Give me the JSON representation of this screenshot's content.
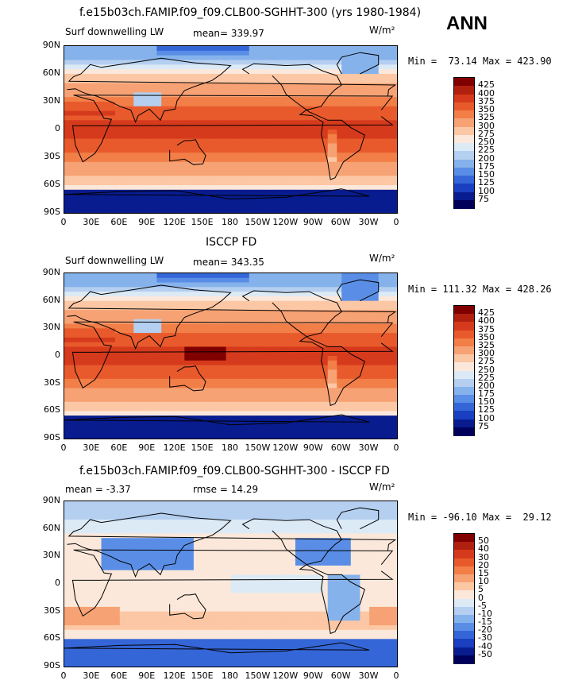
{
  "header": {
    "season": "ANN"
  },
  "panels": [
    {
      "title": "f.e15b03ch.FAMIP.f09_f09.CLB00-SGHHT-300 (yrs 1980-1984)",
      "left_label": "Surf downwelling LW",
      "stat_label": "mean=",
      "stat_value": "339.97",
      "units": "W/m²",
      "min_label": "Min =",
      "min_value": "73.14",
      "max_label": "Max =",
      "max_value": "423.90",
      "colorbar_labels": [
        "425",
        "400",
        "375",
        "350",
        "325",
        "300",
        "275",
        "250",
        "225",
        "200",
        "175",
        "150",
        "125",
        "100",
        "75"
      ],
      "lat_labels": [
        "90N",
        "60N",
        "30N",
        "0",
        "30S",
        "60S",
        "90S"
      ],
      "lon_labels": [
        "0",
        "30E",
        "60E",
        "90E",
        "120E",
        "150E",
        "180",
        "150W",
        "120W",
        "90W",
        "60W",
        "30W",
        "0"
      ],
      "field": "model"
    },
    {
      "title": "ISCCP FD",
      "left_label": "Surf downwelling LW",
      "stat_label": "mean=",
      "stat_value": "343.35",
      "units": "W/m²",
      "min_label": "Min =",
      "min_value": "111.32",
      "max_label": "Max =",
      "max_value": "428.26",
      "colorbar_labels": [
        "425",
        "400",
        "375",
        "350",
        "325",
        "300",
        "275",
        "250",
        "225",
        "200",
        "175",
        "150",
        "125",
        "100",
        "75"
      ],
      "lat_labels": [
        "90N",
        "60N",
        "30N",
        "0",
        "30S",
        "60S",
        "90S"
      ],
      "lon_labels": [
        "0",
        "30E",
        "60E",
        "90E",
        "120E",
        "150E",
        "180",
        "150W",
        "120W",
        "90W",
        "60W",
        "30W",
        "0"
      ],
      "field": "obs"
    },
    {
      "title": "f.e15b03ch.FAMIP.f09_f09.CLB00-SGHHT-300 - ISCCP FD",
      "left_label": "mean =",
      "left_value": "-3.37",
      "stat_label": "rmse =",
      "stat_value": "14.29",
      "units": "W/m²",
      "min_label": "Min =",
      "min_value": "-96.10",
      "max_label": "Max =",
      "max_value": "29.12",
      "colorbar_labels": [
        "50",
        "40",
        "30",
        "20",
        "15",
        "10",
        "5",
        "0",
        "-5",
        "-10",
        "-15",
        "-20",
        "-30",
        "-40",
        "-50"
      ],
      "lat_labels": [
        "90N",
        "60N",
        "30N",
        "0",
        "30S",
        "60S",
        "90S"
      ],
      "lon_labels": [
        "0",
        "30E",
        "60E",
        "90E",
        "120E",
        "150E",
        "180",
        "150W",
        "120W",
        "90W",
        "60W",
        "30W",
        "0"
      ],
      "field": "diff"
    }
  ],
  "colors": {
    "scale": [
      "#800000",
      "#b0200f",
      "#d63a1c",
      "#e85a2c",
      "#f27e48",
      "#f7a274",
      "#fcc7a4",
      "#fbe8da",
      "#dceaf6",
      "#b4cff0",
      "#86b2ec",
      "#5a8ee6",
      "#3566d8",
      "#1a3fc0",
      "#081c8f",
      "#00005a"
    ]
  }
}
